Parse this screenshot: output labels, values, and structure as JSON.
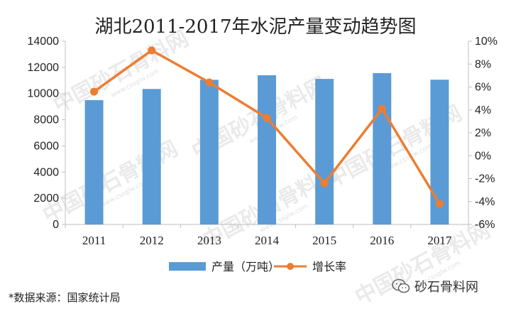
{
  "chart_data": {
    "type": "bar+line",
    "title": "湖北2011-2017年水泥产量变动趋势图",
    "categories": [
      "2011",
      "2012",
      "2013",
      "2014",
      "2015",
      "2016",
      "2017"
    ],
    "series": [
      {
        "name": "产量（万吨）",
        "type": "bar",
        "axis": "left",
        "color": "#5b9bd5",
        "values": [
          9500,
          10350,
          11050,
          11400,
          11120,
          11560,
          11060
        ]
      },
      {
        "name": "增长率",
        "type": "line",
        "axis": "right",
        "color": "#ed7d31",
        "values": [
          5.6,
          9.2,
          6.4,
          3.3,
          -2.4,
          4.1,
          -4.2
        ]
      }
    ],
    "y_left": {
      "min": 0,
      "max": 14000,
      "ticks": [
        "0",
        "2000",
        "4000",
        "6000",
        "8000",
        "10000",
        "12000",
        "14000"
      ]
    },
    "y_right": {
      "min": -6,
      "max": 10,
      "ticks": [
        "-6%",
        "-4%",
        "-2%",
        "0%",
        "2%",
        "4%",
        "6%",
        "8%",
        "10%"
      ]
    },
    "grid": false,
    "legend_position": "bottom"
  },
  "watermark": {
    "text": "中国砂石骨料网",
    "url_text": "www.cssglw.com"
  },
  "source_note": "*数据来源：国家统计局",
  "brand": {
    "label": "砂石骨料网",
    "icon": "wechat-icon"
  }
}
